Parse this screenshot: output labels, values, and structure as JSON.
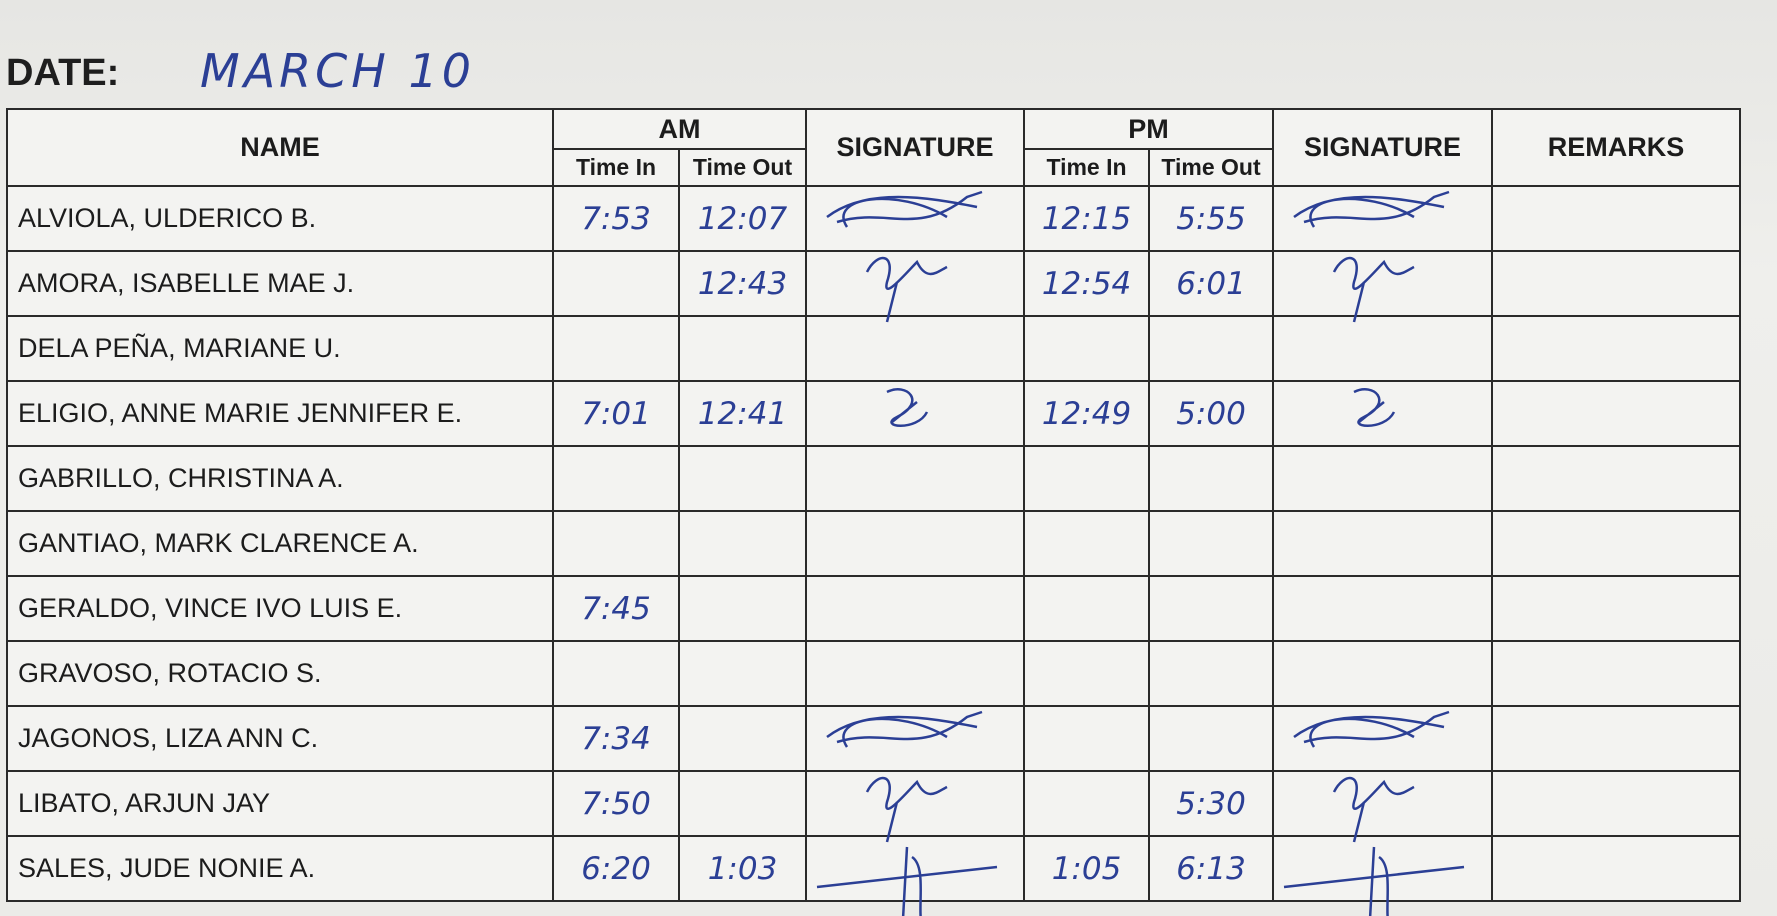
{
  "date": {
    "label": "DATE:",
    "value": "MARCH 10"
  },
  "table": {
    "headers": {
      "name": "NAME",
      "am": "AM",
      "signature_am": "SIGNATURE",
      "pm": "PM",
      "signature_pm": "SIGNATURE",
      "remarks": "REMARKS",
      "am_time_in": "Time In",
      "am_time_out": "Time Out",
      "pm_time_in": "Time In",
      "pm_time_out": "Time Out"
    },
    "rows": [
      {
        "name": "ALVIOLA, ULDERICO B.",
        "am_in": "7:53",
        "am_out": "12:07",
        "am_signed": true,
        "pm_in": "12:15",
        "pm_out": "5:55",
        "pm_signed": true
      },
      {
        "name": "AMORA, ISABELLE MAE J.",
        "am_in": null,
        "am_out": "12:43",
        "am_signed": true,
        "pm_in": "12:54",
        "pm_out": "6:01",
        "pm_signed": true
      },
      {
        "name": "DELA PEÑA, MARIANE U.",
        "am_in": null,
        "am_out": null,
        "am_signed": false,
        "pm_in": null,
        "pm_out": null,
        "pm_signed": false
      },
      {
        "name": "ELIGIO, ANNE MARIE JENNIFER E.",
        "am_in": "7:01",
        "am_out": "12:41",
        "am_signed": true,
        "pm_in": "12:49",
        "pm_out": "5:00",
        "pm_signed": true
      },
      {
        "name": "GABRILLO, CHRISTINA A.",
        "am_in": null,
        "am_out": null,
        "am_signed": false,
        "pm_in": null,
        "pm_out": null,
        "pm_signed": false
      },
      {
        "name": "GANTIAO, MARK CLARENCE A.",
        "am_in": null,
        "am_out": null,
        "am_signed": false,
        "pm_in": null,
        "pm_out": null,
        "pm_signed": false
      },
      {
        "name": "GERALDO, VINCE IVO LUIS E.",
        "am_in": "7:45",
        "am_out": null,
        "am_signed": false,
        "pm_in": null,
        "pm_out": null,
        "pm_signed": false
      },
      {
        "name": "GRAVOSO, ROTACIO S.",
        "am_in": null,
        "am_out": null,
        "am_signed": false,
        "pm_in": null,
        "pm_out": null,
        "pm_signed": false
      },
      {
        "name": "JAGONOS, LIZA ANN C.",
        "am_in": "7:34",
        "am_out": null,
        "am_signed": true,
        "pm_in": null,
        "pm_out": null,
        "pm_signed": true
      },
      {
        "name": "LIBATO, ARJUN JAY",
        "am_in": "7:50",
        "am_out": null,
        "am_signed": true,
        "pm_in": null,
        "pm_out": "5:30",
        "pm_signed": true
      },
      {
        "name": "SALES, JUDE NONIE A.",
        "am_in": "6:20",
        "am_out": "1:03",
        "am_signed": true,
        "pm_in": "1:05",
        "pm_out": "6:13",
        "pm_signed": true
      }
    ]
  }
}
